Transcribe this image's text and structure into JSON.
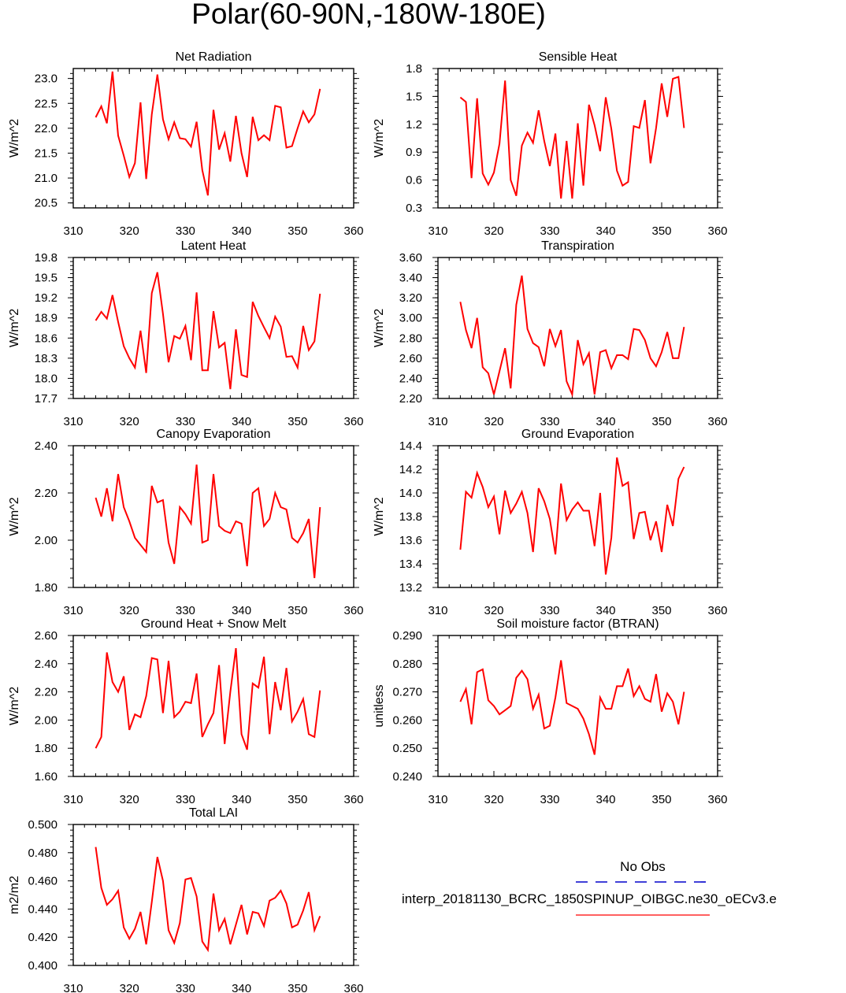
{
  "title": "Polar(60-90N,-180W-180E)",
  "colors": {
    "model": "#ff0000",
    "obs": "#0000cc"
  },
  "legend": {
    "obs_label": "No Obs",
    "model_label": "interp_20181130_BCRC_1850SPINUP_OIBGC.ne30_oECv3.e"
  },
  "chart_data": [
    {
      "type": "line",
      "title": "Net Radiation",
      "ylabel": "W/m^2",
      "xlim": [
        310,
        360
      ],
      "xticks": [
        "310",
        "320",
        "330",
        "340",
        "350",
        "360"
      ],
      "ylim": [
        20.4,
        23.2
      ],
      "yticks": [
        "20.5",
        "21.0",
        "21.5",
        "22.0",
        "22.5",
        "23.0"
      ],
      "x": [
        314,
        315,
        316,
        317,
        318,
        319,
        320,
        321,
        322,
        323,
        324,
        325,
        326,
        327,
        328,
        329,
        330,
        331,
        332,
        333,
        334,
        335,
        336,
        337,
        338,
        339,
        340,
        341,
        342,
        343,
        344,
        345,
        346,
        347,
        348,
        349,
        350,
        351,
        352,
        353,
        354
      ],
      "series": [
        {
          "name": "interp_20181130_BCRC_1850SPINUP_OIBGC.ne30_oECv3.e",
          "values": [
            22.22,
            22.44,
            22.1,
            23.14,
            21.85,
            21.45,
            21.02,
            21.3,
            22.52,
            20.98,
            22.28,
            23.08,
            22.18,
            21.78,
            22.12,
            21.8,
            21.78,
            21.63,
            22.13,
            21.16,
            20.65,
            22.37,
            21.57,
            21.9,
            21.33,
            22.25,
            21.5,
            21.02,
            22.23,
            21.76,
            21.86,
            21.76,
            22.45,
            22.42,
            21.61,
            21.64,
            22.0,
            22.34,
            22.12,
            22.28,
            22.79
          ]
        }
      ]
    },
    {
      "type": "line",
      "title": "Sensible Heat",
      "ylabel": "W/m^2",
      "xlim": [
        310,
        360
      ],
      "xticks": [
        "310",
        "320",
        "330",
        "340",
        "350",
        "360"
      ],
      "ylim": [
        0.3,
        1.8
      ],
      "yticks": [
        "0.3",
        "0.6",
        "0.9",
        "1.2",
        "1.5",
        "1.8"
      ],
      "x": [
        314,
        315,
        316,
        317,
        318,
        319,
        320,
        321,
        322,
        323,
        324,
        325,
        326,
        327,
        328,
        329,
        330,
        331,
        332,
        333,
        334,
        335,
        336,
        337,
        338,
        339,
        340,
        341,
        342,
        343,
        344,
        345,
        346,
        347,
        348,
        349,
        350,
        351,
        352,
        353,
        354
      ],
      "series": [
        {
          "name": "interp_20181130_BCRC_1850SPINUP_OIBGC.ne30_oECv3.e",
          "values": [
            1.49,
            1.44,
            0.62,
            1.48,
            0.67,
            0.55,
            0.68,
            0.99,
            1.67,
            0.6,
            0.43,
            0.97,
            1.11,
            1.0,
            1.35,
            1.02,
            0.75,
            1.1,
            0.4,
            1.02,
            0.4,
            1.21,
            0.54,
            1.41,
            1.19,
            0.91,
            1.49,
            1.15,
            0.7,
            0.54,
            0.58,
            1.18,
            1.16,
            1.46,
            0.78,
            1.16,
            1.64,
            1.28,
            1.69,
            1.71,
            1.16
          ]
        }
      ]
    },
    {
      "type": "line",
      "title": "Latent Heat",
      "ylabel": "W/m^2",
      "xlim": [
        310,
        360
      ],
      "xticks": [
        "310",
        "320",
        "330",
        "340",
        "350",
        "360"
      ],
      "ylim": [
        17.7,
        19.8
      ],
      "yticks": [
        "17.7",
        "18.0",
        "18.3",
        "18.6",
        "18.9",
        "19.2",
        "19.5",
        "19.8"
      ],
      "x": [
        314,
        315,
        316,
        317,
        318,
        319,
        320,
        321,
        322,
        323,
        324,
        325,
        326,
        327,
        328,
        329,
        330,
        331,
        332,
        333,
        334,
        335,
        336,
        337,
        338,
        339,
        340,
        341,
        342,
        343,
        344,
        345,
        346,
        347,
        348,
        349,
        350,
        351,
        352,
        353,
        354
      ],
      "series": [
        {
          "name": "interp_20181130_BCRC_1850SPINUP_OIBGC.ne30_oECv3.e",
          "values": [
            18.86,
            18.99,
            18.89,
            19.24,
            18.84,
            18.48,
            18.3,
            18.16,
            18.71,
            18.08,
            19.27,
            19.58,
            18.96,
            18.24,
            18.63,
            18.59,
            18.78,
            18.27,
            19.28,
            18.12,
            18.12,
            19.0,
            18.46,
            18.53,
            17.84,
            18.73,
            18.05,
            18.02,
            19.14,
            18.93,
            18.76,
            18.6,
            18.92,
            18.77,
            18.32,
            18.33,
            18.16,
            18.78,
            18.42,
            18.55,
            19.26
          ]
        }
      ]
    },
    {
      "type": "line",
      "title": "Transpiration",
      "ylabel": "W/m^2",
      "xlim": [
        310,
        360
      ],
      "xticks": [
        "310",
        "320",
        "330",
        "340",
        "350",
        "360"
      ],
      "ylim": [
        2.2,
        3.6
      ],
      "yticks": [
        "2.20",
        "2.40",
        "2.60",
        "2.80",
        "3.00",
        "3.20",
        "3.40",
        "3.60"
      ],
      "x": [
        314,
        315,
        316,
        317,
        318,
        319,
        320,
        321,
        322,
        323,
        324,
        325,
        326,
        327,
        328,
        329,
        330,
        331,
        332,
        333,
        334,
        335,
        336,
        337,
        338,
        339,
        340,
        341,
        342,
        343,
        344,
        345,
        346,
        347,
        348,
        349,
        350,
        351,
        352,
        353,
        354
      ],
      "series": [
        {
          "name": "interp_20181130_BCRC_1850SPINUP_OIBGC.ne30_oECv3.e",
          "values": [
            3.16,
            2.88,
            2.7,
            3.0,
            2.51,
            2.45,
            2.24,
            2.47,
            2.7,
            2.3,
            3.13,
            3.42,
            2.89,
            2.75,
            2.71,
            2.52,
            2.89,
            2.72,
            2.88,
            2.37,
            2.24,
            2.78,
            2.54,
            2.65,
            2.24,
            2.66,
            2.68,
            2.5,
            2.63,
            2.63,
            2.59,
            2.89,
            2.88,
            2.78,
            2.6,
            2.52,
            2.66,
            2.86,
            2.6,
            2.6,
            2.91
          ]
        }
      ]
    },
    {
      "type": "line",
      "title": "Canopy Evaporation",
      "ylabel": "W/m^2",
      "xlim": [
        310,
        360
      ],
      "xticks": [
        "310",
        "320",
        "330",
        "340",
        "350",
        "360"
      ],
      "ylim": [
        1.8,
        2.4
      ],
      "yticks": [
        "1.80",
        "2.00",
        "2.20",
        "2.40"
      ],
      "x": [
        314,
        315,
        316,
        317,
        318,
        319,
        320,
        321,
        322,
        323,
        324,
        325,
        326,
        327,
        328,
        329,
        330,
        331,
        332,
        333,
        334,
        335,
        336,
        337,
        338,
        339,
        340,
        341,
        342,
        343,
        344,
        345,
        346,
        347,
        348,
        349,
        350,
        351,
        352,
        353,
        354
      ],
      "series": [
        {
          "name": "interp_20181130_BCRC_1850SPINUP_OIBGC.ne30_oECv3.e",
          "values": [
            2.18,
            2.1,
            2.22,
            2.08,
            2.28,
            2.14,
            2.08,
            2.01,
            1.98,
            1.95,
            2.23,
            2.16,
            2.17,
            1.99,
            1.9,
            2.14,
            2.11,
            2.07,
            2.32,
            1.99,
            2.0,
            2.28,
            2.06,
            2.04,
            2.03,
            2.08,
            2.07,
            1.89,
            2.2,
            2.22,
            2.06,
            2.09,
            2.2,
            2.14,
            2.13,
            2.01,
            1.99,
            2.03,
            2.09,
            1.84,
            2.14
          ]
        }
      ]
    },
    {
      "type": "line",
      "title": "Ground Evaporation",
      "ylabel": "W/m^2",
      "xlim": [
        310,
        360
      ],
      "xticks": [
        "310",
        "320",
        "330",
        "340",
        "350",
        "360"
      ],
      "ylim": [
        13.2,
        14.4
      ],
      "yticks": [
        "13.2",
        "13.4",
        "13.6",
        "13.8",
        "14.0",
        "14.2",
        "14.4"
      ],
      "x": [
        314,
        315,
        316,
        317,
        318,
        319,
        320,
        321,
        322,
        323,
        324,
        325,
        326,
        327,
        328,
        329,
        330,
        331,
        332,
        333,
        334,
        335,
        336,
        337,
        338,
        339,
        340,
        341,
        342,
        343,
        344,
        345,
        346,
        347,
        348,
        349,
        350,
        351,
        352,
        353,
        354
      ],
      "series": [
        {
          "name": "interp_20181130_BCRC_1850SPINUP_OIBGC.ne30_oECv3.e",
          "values": [
            13.52,
            14.01,
            13.96,
            14.17,
            14.05,
            13.88,
            13.97,
            13.65,
            14.02,
            13.83,
            13.91,
            14.01,
            13.83,
            13.5,
            14.04,
            13.93,
            13.78,
            13.48,
            14.08,
            13.77,
            13.86,
            13.92,
            13.85,
            13.85,
            13.55,
            14.0,
            13.31,
            13.62,
            14.3,
            14.06,
            14.09,
            13.61,
            13.83,
            13.84,
            13.6,
            13.76,
            13.5,
            13.9,
            13.72,
            14.12,
            14.22
          ]
        }
      ]
    },
    {
      "type": "line",
      "title": "Ground Heat + Snow Melt",
      "ylabel": "W/m^2",
      "xlim": [
        310,
        360
      ],
      "xticks": [
        "310",
        "320",
        "330",
        "340",
        "350",
        "360"
      ],
      "ylim": [
        1.6,
        2.6
      ],
      "yticks": [
        "1.60",
        "1.80",
        "2.00",
        "2.20",
        "2.40",
        "2.60"
      ],
      "x": [
        314,
        315,
        316,
        317,
        318,
        319,
        320,
        321,
        322,
        323,
        324,
        325,
        326,
        327,
        328,
        329,
        330,
        331,
        332,
        333,
        334,
        335,
        336,
        337,
        338,
        339,
        340,
        341,
        342,
        343,
        344,
        345,
        346,
        347,
        348,
        349,
        350,
        351,
        352,
        353,
        354
      ],
      "series": [
        {
          "name": "interp_20181130_BCRC_1850SPINUP_OIBGC.ne30_oECv3.e",
          "values": [
            1.8,
            1.88,
            2.48,
            2.27,
            2.2,
            2.31,
            1.93,
            2.04,
            2.02,
            2.17,
            2.44,
            2.43,
            2.05,
            2.42,
            2.02,
            2.06,
            2.13,
            2.12,
            2.33,
            1.88,
            1.97,
            2.05,
            2.39,
            1.83,
            2.2,
            2.51,
            1.9,
            1.79,
            2.26,
            2.23,
            2.45,
            1.9,
            2.27,
            2.07,
            2.37,
            1.99,
            2.06,
            2.15,
            1.9,
            1.88,
            2.21
          ]
        }
      ]
    },
    {
      "type": "line",
      "title": "Soil moisture factor (BTRAN)",
      "ylabel": "unitless",
      "xlim": [
        310,
        360
      ],
      "xticks": [
        "310",
        "320",
        "330",
        "340",
        "350",
        "360"
      ],
      "ylim": [
        0.24,
        0.29
      ],
      "yticks": [
        "0.240",
        "0.250",
        "0.260",
        "0.270",
        "0.280",
        "0.290"
      ],
      "x": [
        314,
        315,
        316,
        317,
        318,
        319,
        320,
        321,
        322,
        323,
        324,
        325,
        326,
        327,
        328,
        329,
        330,
        331,
        332,
        333,
        334,
        335,
        336,
        337,
        338,
        339,
        340,
        341,
        342,
        343,
        344,
        345,
        346,
        347,
        348,
        349,
        350,
        351,
        352,
        353,
        354
      ],
      "series": [
        {
          "name": "interp_20181130_BCRC_1850SPINUP_OIBGC.ne30_oECv3.e",
          "values": [
            0.2665,
            0.271,
            0.2585,
            0.277,
            0.278,
            0.267,
            0.265,
            0.262,
            0.2635,
            0.265,
            0.275,
            0.2775,
            0.2745,
            0.264,
            0.269,
            0.257,
            0.258,
            0.268,
            0.2812,
            0.266,
            0.265,
            0.264,
            0.2605,
            0.255,
            0.2477,
            0.268,
            0.264,
            0.264,
            0.272,
            0.272,
            0.2783,
            0.2685,
            0.272,
            0.2675,
            0.2665,
            0.2763,
            0.263,
            0.2695,
            0.2665,
            0.2585,
            0.27
          ]
        }
      ]
    },
    {
      "type": "line",
      "title": "Total LAI",
      "ylabel": "m2/m2",
      "xlim": [
        310,
        360
      ],
      "xticks": [
        "310",
        "320",
        "330",
        "340",
        "350",
        "360"
      ],
      "ylim": [
        0.4,
        0.5
      ],
      "yticks": [
        "0.400",
        "0.420",
        "0.440",
        "0.460",
        "0.480",
        "0.500"
      ],
      "x": [
        314,
        315,
        316,
        317,
        318,
        319,
        320,
        321,
        322,
        323,
        324,
        325,
        326,
        327,
        328,
        329,
        330,
        331,
        332,
        333,
        334,
        335,
        336,
        337,
        338,
        339,
        340,
        341,
        342,
        343,
        344,
        345,
        346,
        347,
        348,
        349,
        350,
        351,
        352,
        353,
        354
      ],
      "series": [
        {
          "name": "interp_20181130_BCRC_1850SPINUP_OIBGC.ne30_oECv3.e",
          "values": [
            0.484,
            0.455,
            0.443,
            0.447,
            0.453,
            0.427,
            0.419,
            0.426,
            0.438,
            0.415,
            0.445,
            0.477,
            0.46,
            0.425,
            0.416,
            0.43,
            0.461,
            0.462,
            0.449,
            0.417,
            0.411,
            0.451,
            0.425,
            0.433,
            0.415,
            0.429,
            0.443,
            0.422,
            0.438,
            0.437,
            0.428,
            0.446,
            0.448,
            0.453,
            0.444,
            0.427,
            0.429,
            0.439,
            0.452,
            0.425,
            0.435
          ]
        }
      ]
    }
  ]
}
